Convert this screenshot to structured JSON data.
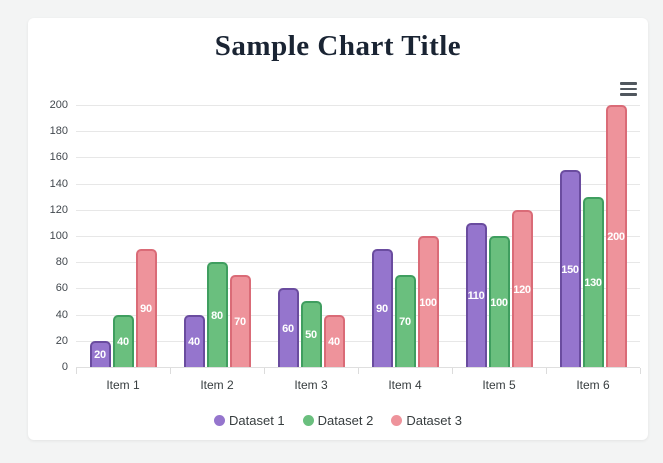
{
  "page": {
    "background_color": "#f3f4f4",
    "card_color": "#ffffff"
  },
  "toolbar": {
    "menu_icon": "hamburger-menu-icon"
  },
  "chart_data": {
    "type": "bar",
    "title": "Sample Chart Title",
    "categories": [
      "Item 1",
      "Item 2",
      "Item 3",
      "Item 4",
      "Item 5",
      "Item 6"
    ],
    "series": [
      {
        "name": "Dataset 1",
        "values": [
          20,
          40,
          60,
          90,
          110,
          150
        ],
        "fill": "#9575cd",
        "border": "#6a4c9f"
      },
      {
        "name": "Dataset 2",
        "values": [
          40,
          80,
          50,
          70,
          100,
          130
        ],
        "fill": "#6abf7e",
        "border": "#3f9e5f"
      },
      {
        "name": "Dataset 3",
        "values": [
          90,
          70,
          40,
          100,
          120,
          200
        ],
        "fill": "#ee939b",
        "border": "#da6b77"
      }
    ],
    "data_labels": true,
    "data_label_color": "#ffffff",
    "xlabel": "",
    "ylabel": "",
    "ylim": [
      0,
      200
    ],
    "y_ticks": [
      0,
      20,
      40,
      60,
      80,
      100,
      120,
      140,
      160,
      180,
      200
    ],
    "grid": true,
    "gridline_color": "#e7e7e7",
    "legend_position": "bottom",
    "title_color": "#1a2433"
  }
}
